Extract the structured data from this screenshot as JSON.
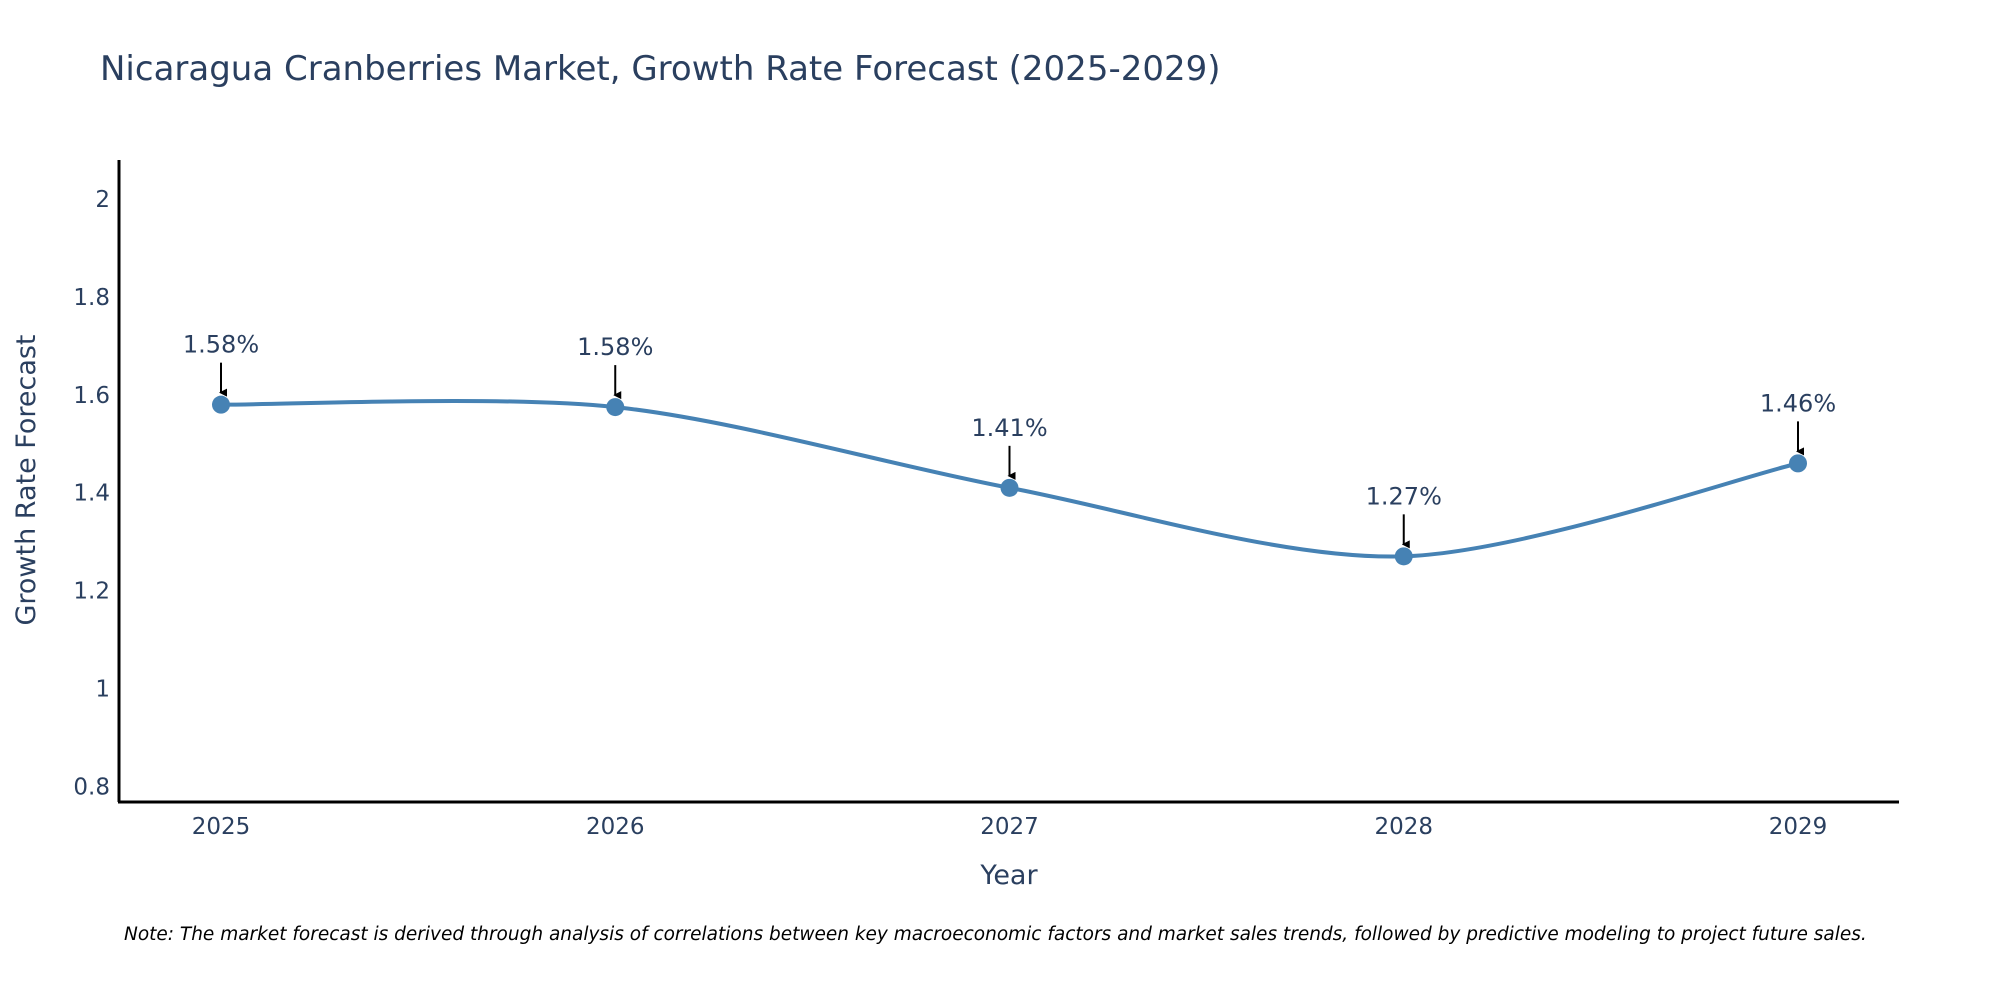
{
  "chart_data": {
    "type": "line",
    "title": "Nicaragua Cranberries Market, Growth Rate Forecast (2025-2029)",
    "xlabel": "Year",
    "ylabel": "Growth Rate Forecast",
    "categories": [
      "2025",
      "2026",
      "2027",
      "2028",
      "2029"
    ],
    "values": [
      1.58,
      1.575,
      1.41,
      1.27,
      1.46
    ],
    "labels": [
      "1.58%",
      "1.58%",
      "1.41%",
      "1.27%",
      "1.46%"
    ],
    "yticks": [
      0.8,
      1,
      1.2,
      1.4,
      1.6,
      1.8,
      2
    ],
    "ytick_labels": [
      "0.8",
      "1",
      "1.2",
      "1.4",
      "1.6",
      "1.8",
      "2"
    ],
    "ylim": [
      0.77,
      2.08
    ],
    "grid": false,
    "line_color": "#4682b4",
    "label_arrow_color": "#000000",
    "note": "Note: The market forecast is derived through analysis of correlations between key macroeconomic factors and market sales trends, followed by predictive modeling to project future sales."
  }
}
